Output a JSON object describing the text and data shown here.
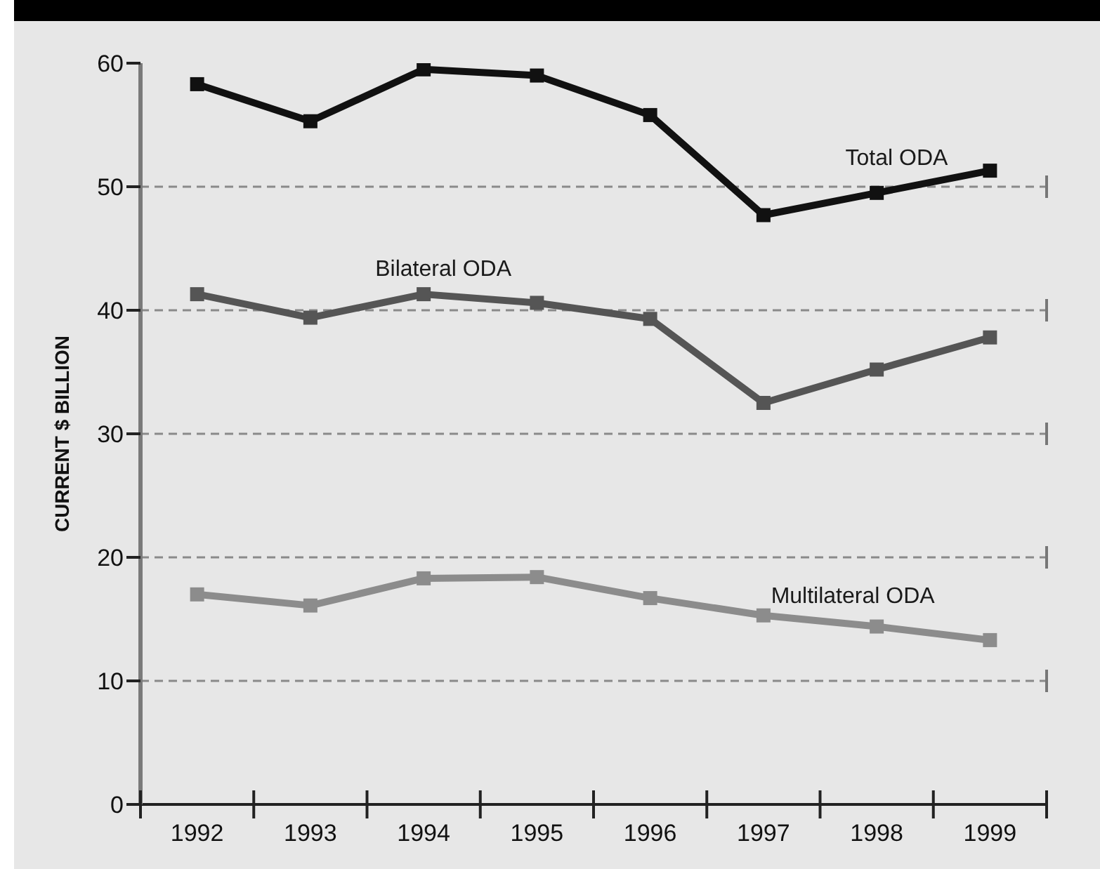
{
  "chart_data": {
    "type": "line",
    "ylabel": "CURRENT $ BILLION",
    "categories": [
      "1992",
      "1993",
      "1994",
      "1995",
      "1996",
      "1997",
      "1998",
      "1999"
    ],
    "series": [
      {
        "name": "Total ODA",
        "color": "#111111",
        "values": [
          58.3,
          55.3,
          59.5,
          59.0,
          55.8,
          47.7,
          49.5,
          51.3
        ]
      },
      {
        "name": "Bilateral ODA",
        "color": "#555555",
        "values": [
          41.3,
          39.4,
          41.3,
          40.6,
          39.3,
          32.5,
          35.2,
          37.8
        ]
      },
      {
        "name": "Multilateral ODA",
        "color": "#8c8c8c",
        "values": [
          17.0,
          16.1,
          18.3,
          18.4,
          16.7,
          15.3,
          14.4,
          13.3
        ]
      }
    ],
    "ylim": [
      0,
      60
    ],
    "yticks": [
      0,
      10,
      20,
      30,
      40,
      50,
      60
    ],
    "grid": "y",
    "legend": false,
    "marker": "square",
    "line_style": "solid"
  }
}
